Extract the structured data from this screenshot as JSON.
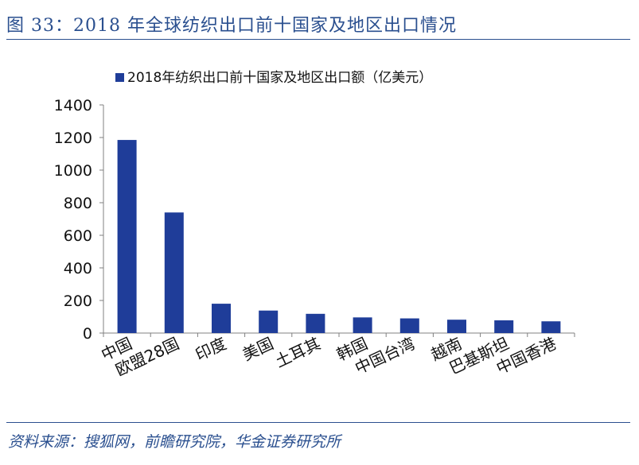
{
  "header": {
    "title": "图 33：2018 年全球纺织出口前十国家及地区出口情况"
  },
  "footer": {
    "source": "资料来源：搜狐网，前瞻研究院，华金证券研究所"
  },
  "colors": {
    "bar": "#1f3d99",
    "accent": "#2a4f8f",
    "axis": "#808080"
  },
  "chart_data": {
    "type": "bar",
    "legend_position": "top",
    "categories": [
      "中国",
      "欧盟28国",
      "印度",
      "美国",
      "土耳其",
      "韩国",
      "中国台湾",
      "越南",
      "巴基斯坦",
      "中国香港"
    ],
    "series": [
      {
        "name": "2018年纺织出口前十国家及地区出口额（亿美元）",
        "values": [
          1185,
          740,
          180,
          138,
          118,
          96,
          90,
          82,
          78,
          72
        ]
      }
    ],
    "ylim": [
      0,
      1400
    ],
    "yticks": [
      "0",
      "200",
      "400",
      "600",
      "800",
      "1000",
      "1200",
      "1400"
    ],
    "grid": false
  }
}
